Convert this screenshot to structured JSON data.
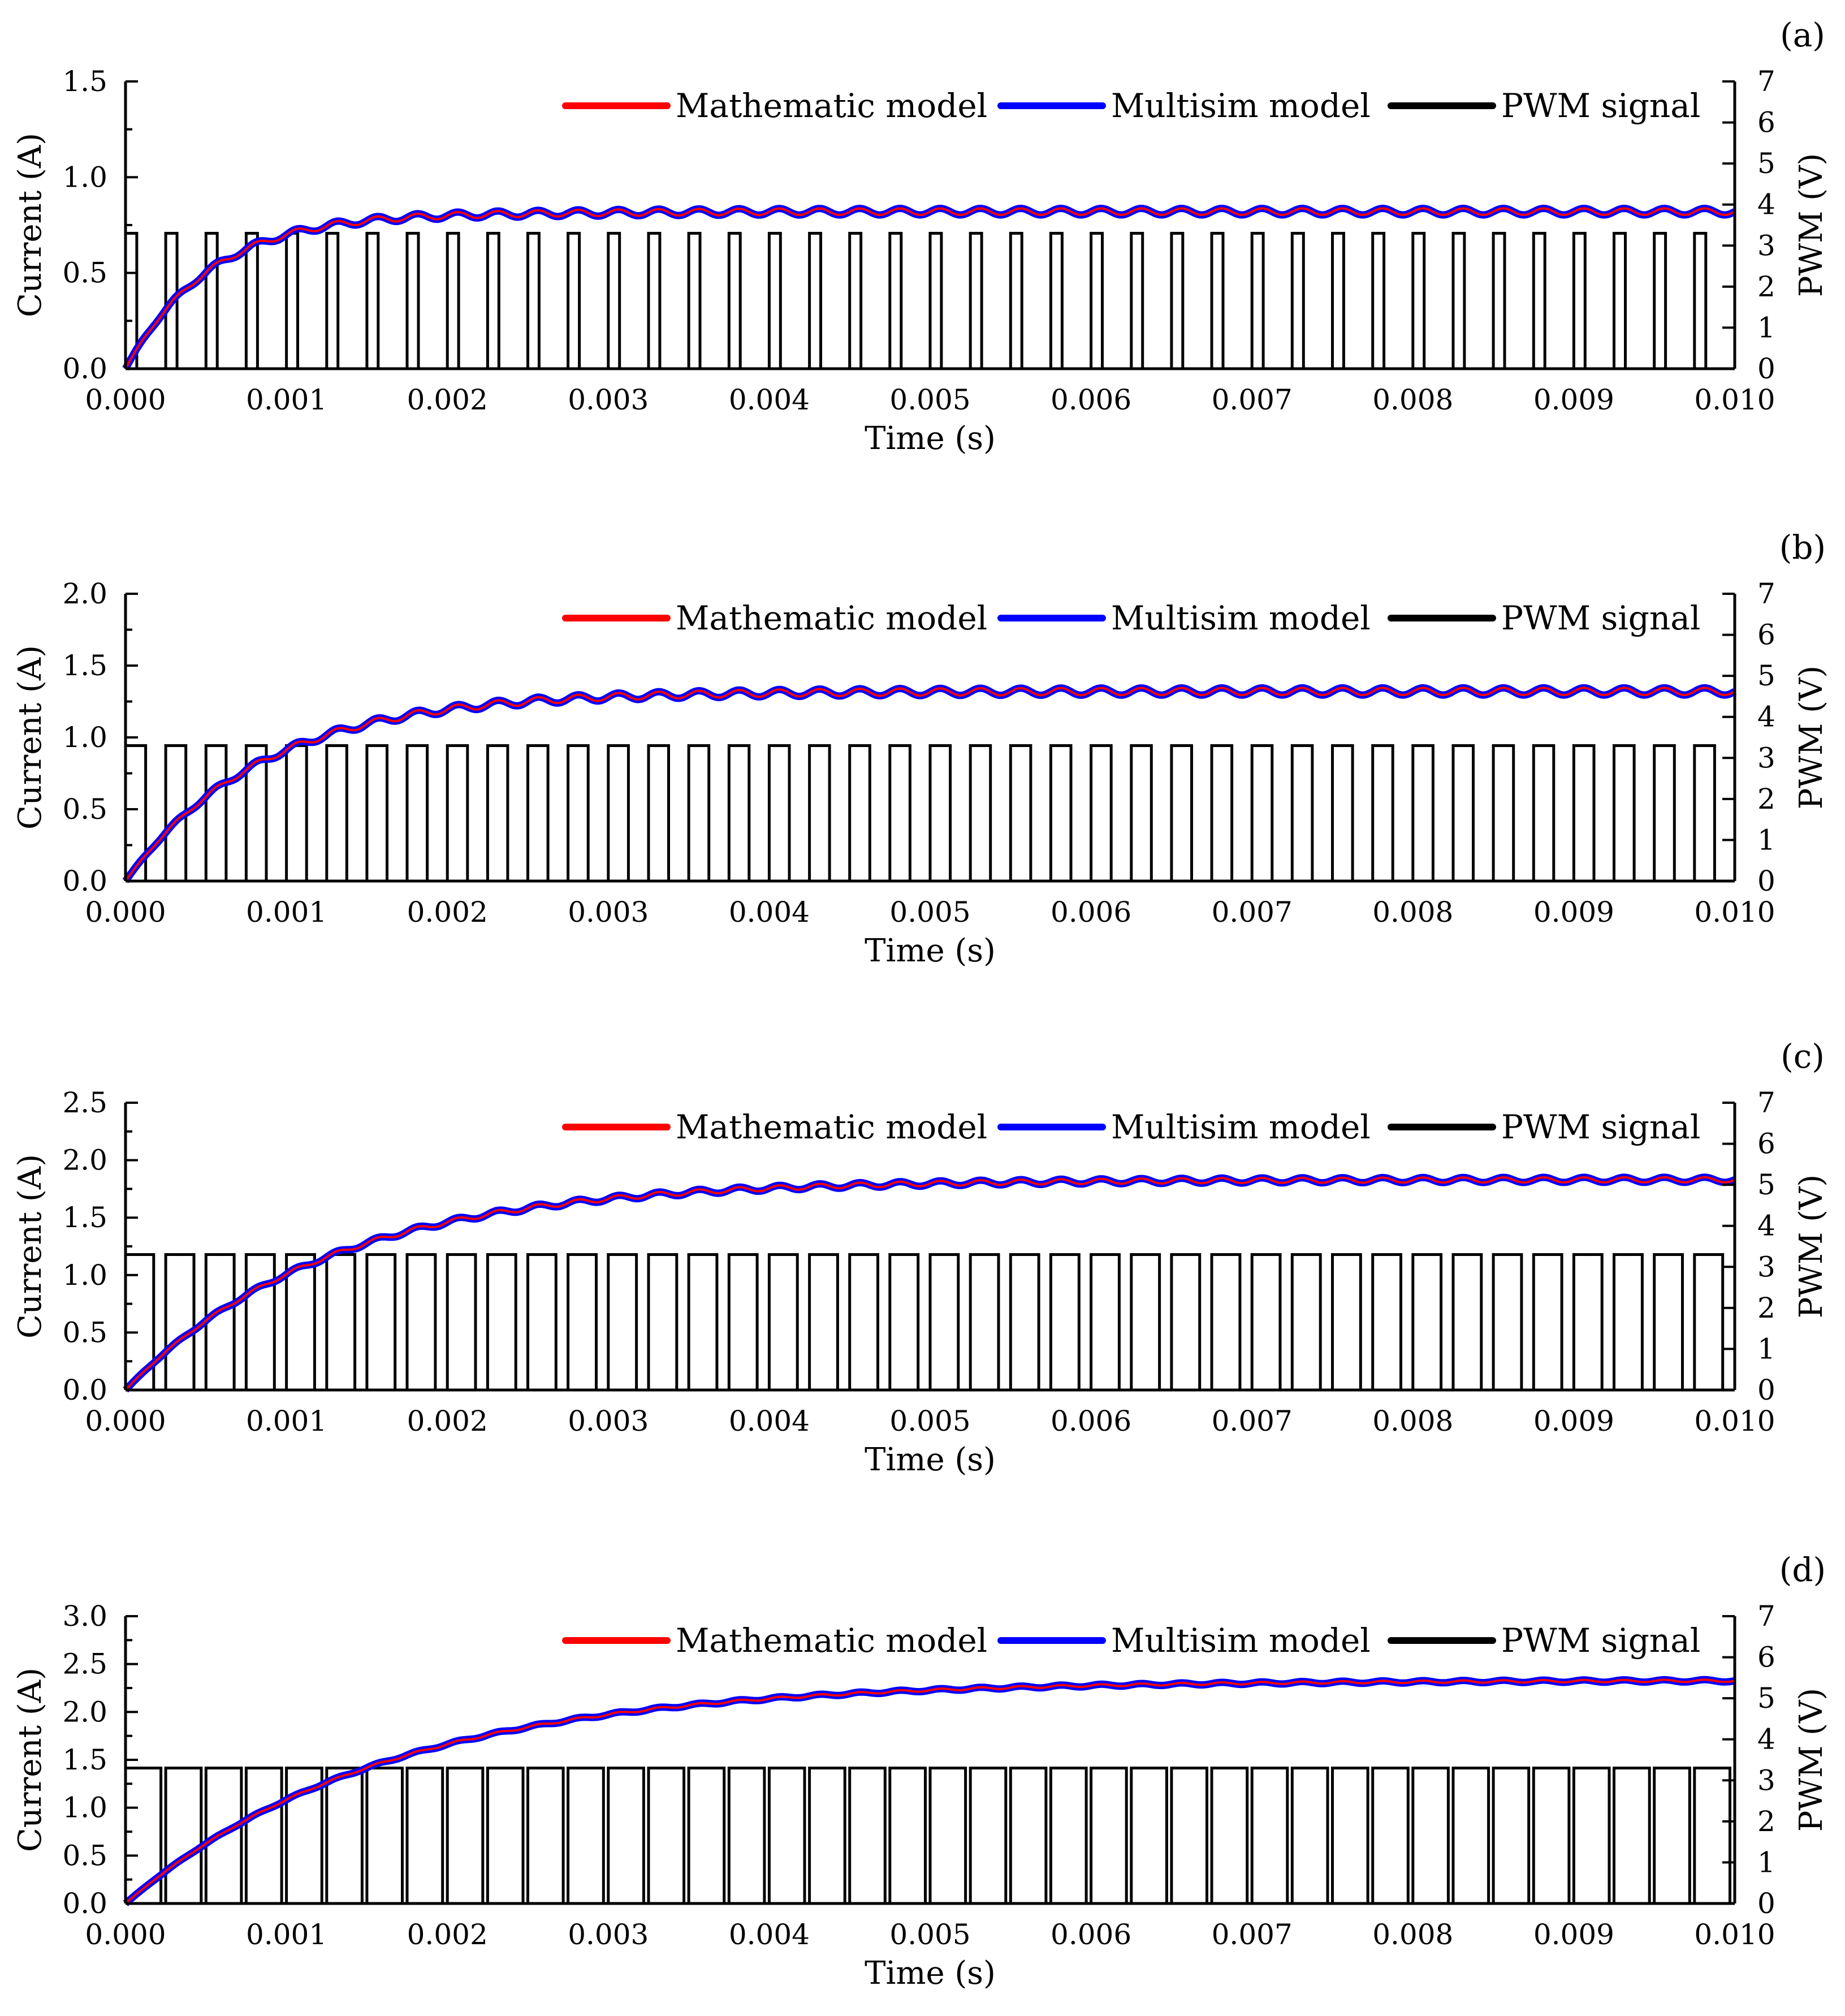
{
  "figure": {
    "colors": {
      "math": "#ff0000",
      "multisim": "#0000ff",
      "pwm": "#000000",
      "axes": "#000000"
    }
  },
  "chart_data": [
    {
      "type": "line",
      "panel_label": "(a)",
      "xlabel": "Time (s)",
      "ylabel_left": "Current (A)",
      "ylabel_right": "PWM (V)",
      "xlim": [
        0,
        0.01
      ],
      "ylim_left": [
        0,
        1.5
      ],
      "ylim_right": [
        0,
        7
      ],
      "x_ticks": [
        "0.000",
        "0.001",
        "0.002",
        "0.003",
        "0.004",
        "0.005",
        "0.006",
        "0.007",
        "0.008",
        "0.009",
        "0.010"
      ],
      "y_left_ticks": [
        "0.0",
        "0.5",
        "1.0",
        "1.5"
      ],
      "y_right_ticks": [
        "0",
        "1",
        "2",
        "3",
        "4",
        "5",
        "6",
        "7"
      ],
      "legend": [
        "Mathematic model",
        "Multisim model",
        "PWM signal"
      ],
      "legend_position": "top-right",
      "current": {
        "tau": 0.00055,
        "steady": 0.82,
        "overshoot": 0.035,
        "ripple": 0.017
      },
      "pwm": {
        "high_v": 3.3,
        "period_s": 0.00025,
        "duty": 0.28
      }
    },
    {
      "type": "line",
      "panel_label": "(b)",
      "xlabel": "Time (s)",
      "ylabel_left": "Current (A)",
      "ylabel_right": "PWM (V)",
      "xlim": [
        0,
        0.01
      ],
      "ylim_left": [
        0,
        2.0
      ],
      "ylim_right": [
        0,
        7
      ],
      "x_ticks": [
        "0.000",
        "0.001",
        "0.002",
        "0.003",
        "0.004",
        "0.005",
        "0.006",
        "0.007",
        "0.008",
        "0.009",
        "0.010"
      ],
      "y_left_ticks": [
        "0.0",
        "0.5",
        "1.0",
        "1.5",
        "2.0"
      ],
      "y_right_ticks": [
        "0",
        "1",
        "2",
        "3",
        "4",
        "5",
        "6",
        "7"
      ],
      "legend": [
        "Mathematic model",
        "Multisim model",
        "PWM signal"
      ],
      "legend_position": "top-right",
      "current": {
        "tau": 0.00085,
        "steady": 1.32,
        "overshoot": 0.0,
        "ripple": 0.025
      },
      "pwm": {
        "high_v": 3.3,
        "period_s": 0.00025,
        "duty": 0.5
      }
    },
    {
      "type": "line",
      "panel_label": "(c)",
      "xlabel": "Time (s)",
      "ylabel_left": "Current (A)",
      "ylabel_right": "PWM (V)",
      "xlim": [
        0,
        0.01
      ],
      "ylim_left": [
        0,
        2.5
      ],
      "ylim_right": [
        0,
        7
      ],
      "x_ticks": [
        "0.000",
        "0.001",
        "0.002",
        "0.003",
        "0.004",
        "0.005",
        "0.006",
        "0.007",
        "0.008",
        "0.009",
        "0.010"
      ],
      "y_left_ticks": [
        "0.0",
        "0.5",
        "1.0",
        "1.5",
        "2.0",
        "2.5"
      ],
      "y_right_ticks": [
        "0",
        "1",
        "2",
        "3",
        "4",
        "5",
        "6",
        "7"
      ],
      "legend": [
        "Mathematic model",
        "Multisim model",
        "PWM signal"
      ],
      "legend_position": "top-right",
      "current": {
        "tau": 0.00125,
        "steady": 1.83,
        "overshoot": 0.0,
        "ripple": 0.022
      },
      "pwm": {
        "high_v": 3.3,
        "period_s": 0.00025,
        "duty": 0.7
      }
    },
    {
      "type": "line",
      "panel_label": "(d)",
      "xlabel": "Time (s)",
      "ylabel_left": "Current (A)",
      "ylabel_right": "PWM (V)",
      "xlim": [
        0,
        0.01
      ],
      "ylim_left": [
        0,
        3.0
      ],
      "ylim_right": [
        0,
        7
      ],
      "x_ticks": [
        "0.000",
        "0.001",
        "0.002",
        "0.003",
        "0.004",
        "0.005",
        "0.006",
        "0.007",
        "0.008",
        "0.009",
        "0.010"
      ],
      "y_left_ticks": [
        "0.0",
        "0.5",
        "1.0",
        "1.5",
        "2.0",
        "2.5",
        "3.0"
      ],
      "y_right_ticks": [
        "0",
        "1",
        "2",
        "3",
        "4",
        "5",
        "6",
        "7"
      ],
      "legend": [
        "Mathematic model",
        "Multisim model",
        "PWM signal"
      ],
      "legend_position": "top-right",
      "current": {
        "tau": 0.0016,
        "steady": 2.33,
        "overshoot": 0.0,
        "ripple": 0.012
      },
      "pwm": {
        "high_v": 3.3,
        "period_s": 0.00025,
        "duty": 0.88
      }
    }
  ]
}
